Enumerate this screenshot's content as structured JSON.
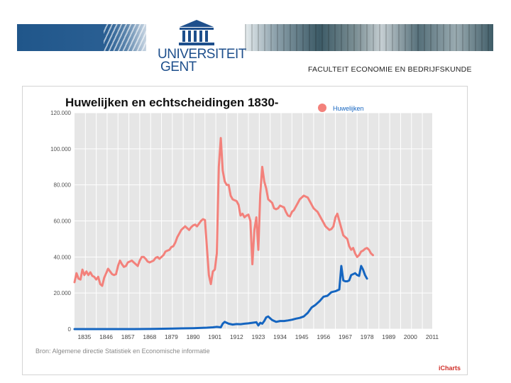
{
  "header": {
    "logo_line1": "UNIVERSITEIT",
    "logo_line2": "GENT",
    "faculty": "FACULTEIT ECONOMIE EN BEDRIJFSKUNDE",
    "brand_color": "#1e4f8c"
  },
  "chart_data": {
    "type": "line",
    "title": "Huwelijken en echtscheidingen 1830-",
    "legend": "Huwelijken",
    "legend_position": "top-right",
    "source": "Bron: Algemene directie Statistiek en Economische informatie",
    "credit": "iCharts",
    "grid": true,
    "xlim": [
      1830,
      2011
    ],
    "ylim": [
      0,
      120000
    ],
    "y_ticks": [
      "0",
      "20.000",
      "40.000",
      "60.000",
      "80.000",
      "100.000",
      "120.000"
    ],
    "y_tick_values": [
      0,
      20000,
      40000,
      60000,
      80000,
      100000,
      120000
    ],
    "x_ticks": [
      "1835",
      "1846",
      "1857",
      "1868",
      "1879",
      "1890",
      "1901",
      "1912",
      "1923",
      "1934",
      "1945",
      "1956",
      "1967",
      "1978",
      "1989",
      "2000",
      "2011"
    ],
    "x_tick_values": [
      1835,
      1846,
      1857,
      1868,
      1879,
      1890,
      1901,
      1912,
      1923,
      1934,
      1945,
      1956,
      1967,
      1978,
      1989,
      2000,
      2011
    ],
    "series": [
      {
        "name": "Huwelijken",
        "color": "#f3817b",
        "points": [
          [
            1830,
            26000
          ],
          [
            1831,
            31000
          ],
          [
            1832,
            28000
          ],
          [
            1833,
            27500
          ],
          [
            1834,
            33000
          ],
          [
            1835,
            30000
          ],
          [
            1836,
            32000
          ],
          [
            1837,
            30000
          ],
          [
            1838,
            31500
          ],
          [
            1839,
            29500
          ],
          [
            1840,
            29000
          ],
          [
            1841,
            27500
          ],
          [
            1842,
            29000
          ],
          [
            1843,
            25000
          ],
          [
            1844,
            24000
          ],
          [
            1845,
            28500
          ],
          [
            1846,
            31000
          ],
          [
            1847,
            33500
          ],
          [
            1848,
            32000
          ],
          [
            1849,
            30500
          ],
          [
            1850,
            30000
          ],
          [
            1851,
            30500
          ],
          [
            1852,
            35000
          ],
          [
            1853,
            38000
          ],
          [
            1854,
            36000
          ],
          [
            1855,
            34500
          ],
          [
            1856,
            35000
          ],
          [
            1857,
            37000
          ],
          [
            1858,
            37500
          ],
          [
            1859,
            38000
          ],
          [
            1860,
            37000
          ],
          [
            1861,
            36000
          ],
          [
            1862,
            35000
          ],
          [
            1863,
            38000
          ],
          [
            1864,
            40000
          ],
          [
            1865,
            40000
          ],
          [
            1866,
            39000
          ],
          [
            1867,
            37500
          ],
          [
            1868,
            37000
          ],
          [
            1869,
            37500
          ],
          [
            1870,
            38000
          ],
          [
            1871,
            39500
          ],
          [
            1872,
            40000
          ],
          [
            1873,
            39000
          ],
          [
            1874,
            40000
          ],
          [
            1875,
            41000
          ],
          [
            1876,
            43000
          ],
          [
            1877,
            43500
          ],
          [
            1878,
            44000
          ],
          [
            1879,
            45500
          ],
          [
            1880,
            46000
          ],
          [
            1881,
            48000
          ],
          [
            1882,
            51000
          ],
          [
            1883,
            53000
          ],
          [
            1884,
            55000
          ],
          [
            1885,
            56000
          ],
          [
            1886,
            57000
          ],
          [
            1887,
            56000
          ],
          [
            1888,
            55000
          ],
          [
            1889,
            56500
          ],
          [
            1890,
            57500
          ],
          [
            1891,
            58000
          ],
          [
            1892,
            57000
          ],
          [
            1893,
            58500
          ],
          [
            1894,
            60000
          ],
          [
            1895,
            61000
          ],
          [
            1896,
            60500
          ],
          [
            1897,
            45000
          ],
          [
            1898,
            30000
          ],
          [
            1899,
            25000
          ],
          [
            1900,
            32000
          ],
          [
            1901,
            33000
          ],
          [
            1902,
            42000
          ],
          [
            1903,
            90000
          ],
          [
            1904,
            106000
          ],
          [
            1905,
            88000
          ],
          [
            1906,
            82000
          ],
          [
            1907,
            80000
          ],
          [
            1908,
            80000
          ],
          [
            1909,
            74000
          ],
          [
            1910,
            72000
          ],
          [
            1911,
            71500
          ],
          [
            1912,
            71000
          ],
          [
            1913,
            69000
          ],
          [
            1914,
            63000
          ],
          [
            1915,
            64000
          ],
          [
            1916,
            62000
          ],
          [
            1917,
            63000
          ],
          [
            1918,
            63500
          ],
          [
            1919,
            60000
          ],
          [
            1920,
            36000
          ],
          [
            1921,
            55000
          ],
          [
            1922,
            62000
          ],
          [
            1923,
            44000
          ],
          [
            1924,
            75000
          ],
          [
            1925,
            90000
          ],
          [
            1926,
            82000
          ],
          [
            1927,
            78000
          ],
          [
            1928,
            72000
          ],
          [
            1929,
            71000
          ],
          [
            1930,
            70000
          ],
          [
            1931,
            67000
          ],
          [
            1932,
            66500
          ],
          [
            1933,
            67000
          ],
          [
            1934,
            68500
          ],
          [
            1935,
            68000
          ],
          [
            1936,
            67500
          ],
          [
            1937,
            65000
          ],
          [
            1938,
            63000
          ],
          [
            1939,
            62500
          ],
          [
            1940,
            65000
          ],
          [
            1941,
            66000
          ],
          [
            1942,
            68000
          ],
          [
            1943,
            70000
          ],
          [
            1944,
            72000
          ],
          [
            1945,
            73000
          ],
          [
            1946,
            74000
          ],
          [
            1947,
            73500
          ],
          [
            1948,
            73000
          ],
          [
            1949,
            71000
          ],
          [
            1950,
            69000
          ],
          [
            1951,
            67000
          ],
          [
            1952,
            66000
          ],
          [
            1953,
            65000
          ],
          [
            1954,
            63000
          ],
          [
            1955,
            61000
          ],
          [
            1956,
            59000
          ],
          [
            1957,
            57000
          ],
          [
            1958,
            56000
          ],
          [
            1959,
            55000
          ],
          [
            1960,
            55500
          ],
          [
            1961,
            57000
          ],
          [
            1962,
            62000
          ],
          [
            1963,
            64000
          ],
          [
            1964,
            60000
          ],
          [
            1965,
            56000
          ],
          [
            1966,
            52000
          ],
          [
            1967,
            51000
          ],
          [
            1968,
            50000
          ],
          [
            1969,
            46000
          ],
          [
            1970,
            44000
          ],
          [
            1971,
            45000
          ],
          [
            1972,
            42000
          ],
          [
            1973,
            40000
          ],
          [
            1974,
            41000
          ],
          [
            1975,
            43000
          ],
          [
            1976,
            43500
          ],
          [
            1977,
            44500
          ],
          [
            1978,
            45000
          ],
          [
            1979,
            44000
          ],
          [
            1980,
            42000
          ],
          [
            1981,
            41000
          ]
        ]
      },
      {
        "name": "",
        "color": "#1565c0",
        "points": [
          [
            1830,
            0
          ],
          [
            1840,
            0
          ],
          [
            1850,
            0
          ],
          [
            1860,
            0
          ],
          [
            1870,
            100
          ],
          [
            1880,
            300
          ],
          [
            1890,
            500
          ],
          [
            1897,
            800
          ],
          [
            1900,
            1000
          ],
          [
            1902,
            1200
          ],
          [
            1904,
            1000
          ],
          [
            1905,
            3000
          ],
          [
            1906,
            4000
          ],
          [
            1907,
            3500
          ],
          [
            1908,
            3000
          ],
          [
            1910,
            2500
          ],
          [
            1912,
            2800
          ],
          [
            1914,
            2700
          ],
          [
            1916,
            3000
          ],
          [
            1918,
            3200
          ],
          [
            1920,
            3500
          ],
          [
            1922,
            3800
          ],
          [
            1923,
            2000
          ],
          [
            1924,
            3500
          ],
          [
            1925,
            3000
          ],
          [
            1926,
            4500
          ],
          [
            1927,
            6500
          ],
          [
            1928,
            7000
          ],
          [
            1929,
            6000
          ],
          [
            1930,
            5000
          ],
          [
            1932,
            4000
          ],
          [
            1934,
            4500
          ],
          [
            1936,
            4500
          ],
          [
            1938,
            4800
          ],
          [
            1940,
            5200
          ],
          [
            1942,
            5800
          ],
          [
            1944,
            6200
          ],
          [
            1946,
            7000
          ],
          [
            1948,
            9000
          ],
          [
            1950,
            12000
          ],
          [
            1952,
            13500
          ],
          [
            1954,
            15500
          ],
          [
            1956,
            18000
          ],
          [
            1958,
            18500
          ],
          [
            1960,
            20500
          ],
          [
            1962,
            21000
          ],
          [
            1964,
            22000
          ],
          [
            1965,
            35000
          ],
          [
            1966,
            27000
          ],
          [
            1967,
            26500
          ],
          [
            1968,
            26500
          ],
          [
            1969,
            27000
          ],
          [
            1970,
            30000
          ],
          [
            1972,
            31000
          ],
          [
            1973,
            30000
          ],
          [
            1974,
            29500
          ],
          [
            1975,
            35000
          ],
          [
            1976,
            33000
          ],
          [
            1977,
            30000
          ],
          [
            1978,
            28000
          ]
        ]
      }
    ]
  }
}
